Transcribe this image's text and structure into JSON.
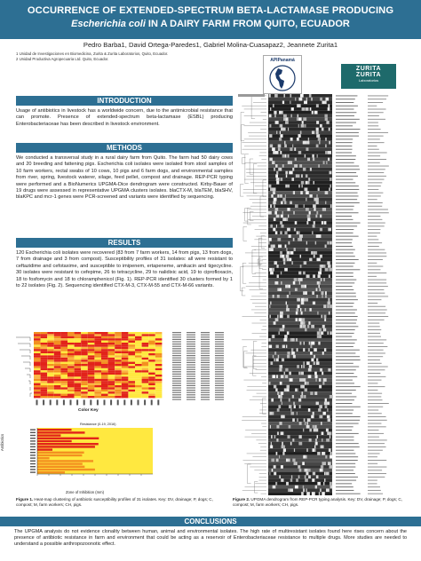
{
  "title": {
    "line1": "OCCURRENCE OF EXTENDED-SPECTRUM BETA-LACTAMASE PRODUCING",
    "line2_italic": "Escherichia coli",
    "line2_rest": " IN A DAIRY FARM FROM QUITO, ECUADOR"
  },
  "authors": "Pedro Barba1, David Ortega-Paredes1, Gabriel Molina-Cuasapaz2, Jeannete Zurita1",
  "affiliations": [
    "1 Unidad de Investigaciones en Biomedicina, Zurita & Zurita Laboratorios, Quito, Ecuador.",
    "2 Unidad Productiva Agropecuaria Ltd. Quito, Ecuador."
  ],
  "logos": {
    "left": "APIPanamá",
    "right_line1": "ZURITA",
    "right_line2": "ZURITA",
    "right_line3": "Laboratorios"
  },
  "sections": {
    "introduction": {
      "heading": "INTRODUCTION",
      "text": "Usage of antibiotics in livestock has a worldwide concern, due to the antimicrobial resistance that can promote. Presence of extended-spectrum beta-lactamase (ESBL) producing Enterobacteriaceae has been described in livestock environment."
    },
    "methods": {
      "heading": "METHODS",
      "text": "We conducted a transversal study in a rural dairy farm from Quito. The farm had 50 dairy cows and 20 breeding and fattening pigs. Escherichia coli isolates were isolated from stool samples of 10 farm workers, rectal swabs of 10 cows, 10 pigs and 6 farm dogs, and environmental samples from river, spring, livestock waterer, silage, feed pellet, compost and drainage. REP-PCR typing were performed and a BioNumerics UPGMA-Dice dendrogram were constructed. Kirby-Bauer of 19 drugs were assessed in representative UPGMA clusters isolates. blaCTX-M, blaTEM, blaSHV, blaKPC and mcr-1 genes were PCR-screened and variants were identified by sequencing."
    },
    "results": {
      "heading": "RESULTS",
      "text": "120 Escherichia coli isolates were recovered (83 from 7 farm workers, 14 from pigs, 13 from dogs, 7 from drainage and 3 from compost). Susceptibility profiles of 31 isolates: all were resistant to ceftazidime and cefotaxime, and susceptible to imipenem, ertapeneme, amikacin and tigecycline. 30 isolates were resistant to cefepime, 26 to tetracycline, 29 to nalidixic acid, 19 to ciprofloxacin, 18 to fosfomycin and 18 to chloramphenicol (Fig. 1). REP-PCR identified 30 clusters formed by 1 to 22 isolates (Fig. 2). Sequencing identified CTX-M-3, CTX-M-55 and CTX-M-66 variants."
    },
    "conclusions": {
      "heading": "CONCLUSIONS",
      "text": "The UPGMA analysis do not evidence clonality between human, animal and environmental isolates. The high rate of multiresistant isolates found here rises concern about the presence of antibiotic resistance in farm and environment that could be acting as a reservoir of Enterobacteriaceae resistance to multiple drugs. More studies are needed to understand a possible anthropozoonotic effect."
    }
  },
  "figure1": {
    "color_key_label": "Color Key",
    "histogram_title": "Resistance (0-19, 2016)",
    "ylabel": "Antibiotics",
    "xlabel": "Zone of Inhibition (mm)",
    "caption_bold": "Figure 1.",
    "caption": " Heat-map clustering of antibiotic susceptibility profiles of 31 isolates. Key: DV, drainage; P, dogs; C, compost; M, farm workers; CH, pigs."
  },
  "figure2": {
    "caption_bold": "Figure 2.",
    "caption": " UPGMA dendrogram from REP-PCR typing analysis. Key: DV, drainage; P, dogs; C, compost; M, farm workers; CH, pigs."
  },
  "colors": {
    "header_blue": "#2d6f93",
    "heat_red": "#e2231a",
    "heat_orange": "#f39020",
    "heat_yellow": "#ffe840"
  }
}
